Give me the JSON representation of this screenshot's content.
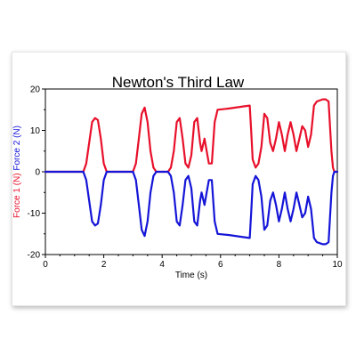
{
  "chart_data": {
    "type": "line",
    "title": "Newton's Third Law",
    "xlabel": "Time (s)",
    "ylabel_parts": [
      {
        "text": "Force 1 (N)",
        "color": "#e8102a"
      },
      {
        "text": "Force 2 (N)",
        "color": "#1515d8"
      }
    ],
    "xlim": [
      0,
      10
    ],
    "ylim": [
      -20,
      20
    ],
    "x_ticks": [
      0,
      2,
      4,
      6,
      8,
      10
    ],
    "y_ticks": [
      -20,
      -10,
      0,
      10,
      20
    ],
    "grid": false,
    "legend": "none",
    "series": [
      {
        "name": "Force 1",
        "color": "#e8102a",
        "points": [
          [
            0,
            0
          ],
          [
            1.3,
            0
          ],
          [
            1.4,
            2
          ],
          [
            1.5,
            7
          ],
          [
            1.6,
            12
          ],
          [
            1.7,
            13
          ],
          [
            1.8,
            12.5
          ],
          [
            1.9,
            8
          ],
          [
            2.0,
            2
          ],
          [
            2.1,
            0
          ],
          [
            3.0,
            0
          ],
          [
            3.1,
            2
          ],
          [
            3.2,
            8
          ],
          [
            3.3,
            14
          ],
          [
            3.4,
            15.5
          ],
          [
            3.5,
            12
          ],
          [
            3.6,
            5
          ],
          [
            3.7,
            1
          ],
          [
            3.8,
            0
          ],
          [
            4.2,
            0
          ],
          [
            4.3,
            1
          ],
          [
            4.4,
            5
          ],
          [
            4.5,
            12
          ],
          [
            4.6,
            13
          ],
          [
            4.7,
            8
          ],
          [
            4.8,
            2
          ],
          [
            4.9,
            1
          ],
          [
            5.0,
            4
          ],
          [
            5.1,
            12
          ],
          [
            5.2,
            13
          ],
          [
            5.3,
            7
          ],
          [
            5.35,
            5
          ],
          [
            5.45,
            8
          ],
          [
            5.5,
            6
          ],
          [
            5.6,
            2
          ],
          [
            5.7,
            2
          ],
          [
            5.8,
            12
          ],
          [
            5.9,
            15
          ],
          [
            6.3,
            15.3
          ],
          [
            6.8,
            15.8
          ],
          [
            7.0,
            16
          ],
          [
            7.05,
            10
          ],
          [
            7.1,
            3
          ],
          [
            7.2,
            1
          ],
          [
            7.3,
            2
          ],
          [
            7.4,
            6
          ],
          [
            7.5,
            14
          ],
          [
            7.6,
            13
          ],
          [
            7.7,
            7
          ],
          [
            7.8,
            5
          ],
          [
            7.9,
            8
          ],
          [
            8.0,
            12
          ],
          [
            8.1,
            9
          ],
          [
            8.2,
            5
          ],
          [
            8.3,
            9
          ],
          [
            8.4,
            12
          ],
          [
            8.5,
            9
          ],
          [
            8.6,
            5
          ],
          [
            8.7,
            8
          ],
          [
            8.8,
            11
          ],
          [
            8.9,
            10
          ],
          [
            9.0,
            6
          ],
          [
            9.1,
            9
          ],
          [
            9.2,
            16
          ],
          [
            9.3,
            17
          ],
          [
            9.5,
            17.5
          ],
          [
            9.6,
            17.5
          ],
          [
            9.7,
            17
          ],
          [
            9.8,
            5
          ],
          [
            9.85,
            1
          ],
          [
            9.9,
            0
          ],
          [
            10.0,
            0
          ]
        ]
      },
      {
        "name": "Force 2",
        "color": "#1515d8",
        "points": [
          [
            0,
            0
          ],
          [
            1.3,
            0
          ],
          [
            1.4,
            -2
          ],
          [
            1.5,
            -7
          ],
          [
            1.6,
            -12
          ],
          [
            1.7,
            -13
          ],
          [
            1.8,
            -12.5
          ],
          [
            1.9,
            -8
          ],
          [
            2.0,
            -2
          ],
          [
            2.1,
            0
          ],
          [
            3.0,
            0
          ],
          [
            3.1,
            -2
          ],
          [
            3.2,
            -8
          ],
          [
            3.3,
            -14
          ],
          [
            3.4,
            -15.5
          ],
          [
            3.5,
            -12
          ],
          [
            3.6,
            -5
          ],
          [
            3.7,
            -1
          ],
          [
            3.8,
            0
          ],
          [
            4.2,
            0
          ],
          [
            4.3,
            -1
          ],
          [
            4.4,
            -5
          ],
          [
            4.5,
            -12
          ],
          [
            4.6,
            -13
          ],
          [
            4.7,
            -8
          ],
          [
            4.8,
            -2
          ],
          [
            4.9,
            -1
          ],
          [
            5.0,
            -4
          ],
          [
            5.1,
            -12
          ],
          [
            5.2,
            -13
          ],
          [
            5.3,
            -7
          ],
          [
            5.35,
            -5
          ],
          [
            5.45,
            -8
          ],
          [
            5.5,
            -6
          ],
          [
            5.6,
            -2
          ],
          [
            5.7,
            -2
          ],
          [
            5.8,
            -12
          ],
          [
            5.9,
            -15
          ],
          [
            6.3,
            -15.3
          ],
          [
            6.8,
            -15.8
          ],
          [
            7.0,
            -16
          ],
          [
            7.05,
            -10
          ],
          [
            7.1,
            -3
          ],
          [
            7.2,
            -1
          ],
          [
            7.3,
            -2
          ],
          [
            7.4,
            -6
          ],
          [
            7.5,
            -14
          ],
          [
            7.6,
            -13
          ],
          [
            7.7,
            -7
          ],
          [
            7.8,
            -5
          ],
          [
            7.9,
            -8
          ],
          [
            8.0,
            -12
          ],
          [
            8.1,
            -9
          ],
          [
            8.2,
            -5
          ],
          [
            8.3,
            -9
          ],
          [
            8.4,
            -12
          ],
          [
            8.5,
            -9
          ],
          [
            8.6,
            -5
          ],
          [
            8.7,
            -8
          ],
          [
            8.8,
            -11
          ],
          [
            8.9,
            -10
          ],
          [
            9.0,
            -6
          ],
          [
            9.1,
            -9
          ],
          [
            9.2,
            -16
          ],
          [
            9.3,
            -17
          ],
          [
            9.5,
            -17.5
          ],
          [
            9.6,
            -17.5
          ],
          [
            9.7,
            -17
          ],
          [
            9.8,
            -5
          ],
          [
            9.85,
            -1
          ],
          [
            9.9,
            0
          ],
          [
            10.0,
            0
          ]
        ]
      }
    ]
  }
}
